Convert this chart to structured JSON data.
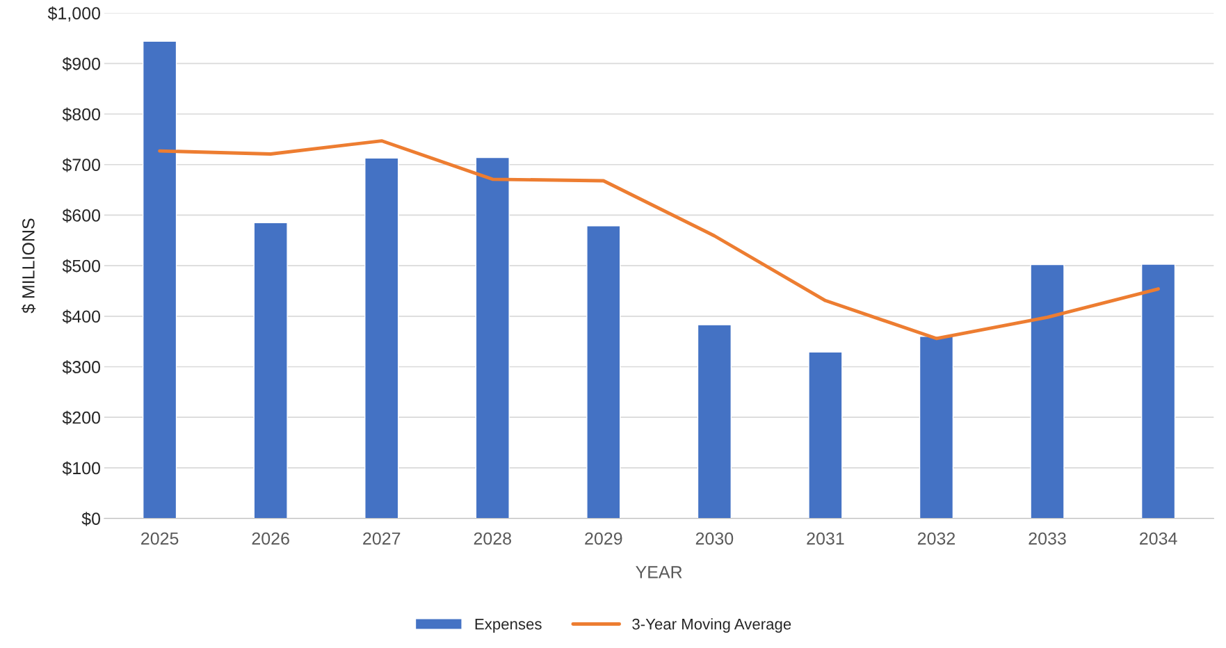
{
  "chart_data": {
    "type": "bar",
    "xlabel": "YEAR",
    "ylabel": "$ MILLIONS",
    "categories": [
      "2025",
      "2026",
      "2027",
      "2028",
      "2029",
      "2030",
      "2031",
      "2032",
      "2033",
      "2034"
    ],
    "series": [
      {
        "name": "Expenses",
        "color": "#4472c4",
        "values": [
          944,
          585,
          713,
          714,
          579,
          383,
          329,
          360,
          502,
          503
        ]
      },
      {
        "name": "3-Year Moving Average",
        "type": "line",
        "color": "#ed7d31",
        "values": [
          727,
          721,
          747,
          671,
          668,
          559,
          431,
          356,
          398,
          454
        ]
      }
    ],
    "ylim": [
      0,
      1000
    ],
    "yticks": [
      {
        "value": 0,
        "label": "$0"
      },
      {
        "value": 100,
        "label": "$100"
      },
      {
        "value": 200,
        "label": "$200"
      },
      {
        "value": 300,
        "label": "$300"
      },
      {
        "value": 400,
        "label": "$400"
      },
      {
        "value": 500,
        "label": "$500"
      },
      {
        "value": 600,
        "label": "$600"
      },
      {
        "value": 700,
        "label": "$700"
      },
      {
        "value": 800,
        "label": "$800"
      },
      {
        "value": 900,
        "label": "$900"
      },
      {
        "value": 1000,
        "label": "$1,000"
      }
    ],
    "grid": "y",
    "legend": "bottom",
    "marker": "none",
    "line_style": "solid"
  }
}
